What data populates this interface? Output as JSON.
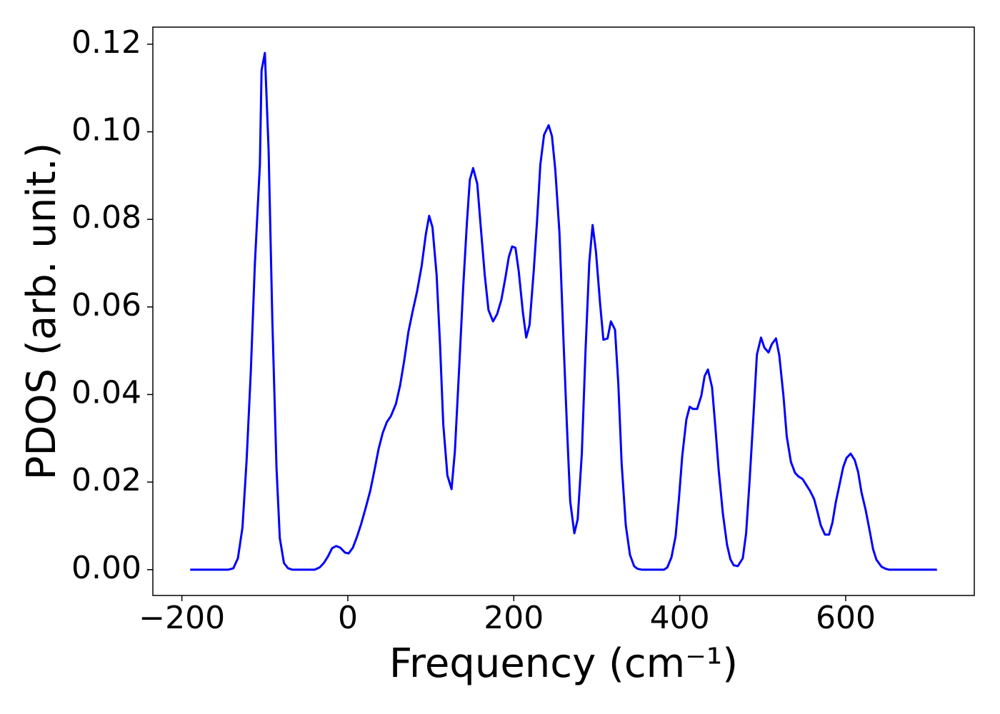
{
  "chart_data": {
    "type": "line",
    "xlabel": "Frequency (cm⁻¹)",
    "ylabel": "PDOS (arb. unit.)",
    "xlim": [
      -235,
      755
    ],
    "ylim": [
      -0.0059,
      0.1239
    ],
    "xticks": [
      {
        "value": -200,
        "label": "−200"
      },
      0,
      200,
      400,
      600
    ],
    "yticks": [
      {
        "value": 0,
        "label": "0.00"
      },
      {
        "value": 0.02,
        "label": "0.02"
      },
      {
        "value": 0.04,
        "label": "0.04"
      },
      {
        "value": 0.06,
        "label": "0.06"
      },
      {
        "value": 0.08,
        "label": "0.08"
      },
      {
        "value": 0.1,
        "label": "0.10"
      },
      {
        "value": 0.12,
        "label": "0.12"
      }
    ],
    "grid": false,
    "series": [
      {
        "color": "#0000ff",
        "x": [
          -190,
          -144,
          -138,
          -132.5,
          -127,
          -122,
          -117,
          -112,
          -106,
          -104,
          -100,
          -95.5,
          -91,
          -86,
          -82,
          -77,
          -72,
          -67,
          -40,
          -34,
          -29,
          -24,
          -19,
          -14,
          -9,
          -3.4,
          1,
          6,
          11,
          16,
          21.5,
          27,
          32,
          37,
          42,
          47,
          52,
          58,
          63,
          68,
          73,
          78,
          83.5,
          89,
          94,
          98,
          102,
          107,
          111,
          115,
          120,
          125,
          129,
          134,
          139,
          143.5,
          147,
          151,
          156,
          160,
          165,
          169.5,
          175,
          180,
          185,
          190,
          194,
          198,
          202,
          206,
          211,
          215,
          219,
          224,
          228,
          232,
          236.5,
          242,
          246,
          250,
          255,
          260,
          264,
          268,
          273,
          277,
          282,
          286.5,
          291,
          295,
          299,
          304,
          308,
          313,
          317,
          322,
          326,
          330,
          335,
          340,
          345,
          349,
          354,
          381,
          385,
          390,
          395,
          399,
          403,
          408,
          412,
          416,
          421,
          426,
          430,
          434,
          439,
          443,
          447,
          452,
          457,
          461,
          465,
          470,
          476,
          480,
          484,
          489,
          493,
          498,
          502,
          507,
          511,
          516,
          520,
          525,
          529,
          534,
          539,
          543,
          548,
          552,
          557,
          562,
          566,
          570,
          575,
          580,
          584,
          588,
          593,
          597,
          601,
          606,
          611,
          615,
          619,
          624,
          629,
          633,
          637,
          643,
          648,
          652,
          710
        ],
        "values": [
          0,
          0,
          0.0003,
          0.0026,
          0.0096,
          0.025,
          0.045,
          0.07,
          0.0925,
          0.114,
          0.118,
          0.0958,
          0.057,
          0.0234,
          0.0072,
          0.0015,
          0.0003,
          0,
          0,
          0.0005,
          0.0015,
          0.003,
          0.0049,
          0.0054,
          0.005,
          0.0039,
          0.0037,
          0.005,
          0.0075,
          0.0104,
          0.0141,
          0.018,
          0.0226,
          0.0275,
          0.0312,
          0.0337,
          0.0351,
          0.0379,
          0.0421,
          0.0478,
          0.0543,
          0.0589,
          0.0636,
          0.0694,
          0.0766,
          0.0808,
          0.0782,
          0.0673,
          0.0519,
          0.0332,
          0.0215,
          0.0184,
          0.027,
          0.0454,
          0.0644,
          0.0792,
          0.089,
          0.0917,
          0.0881,
          0.0787,
          0.0673,
          0.0593,
          0.0567,
          0.0584,
          0.0616,
          0.0668,
          0.0714,
          0.0738,
          0.0735,
          0.0681,
          0.0587,
          0.053,
          0.0559,
          0.0681,
          0.0795,
          0.0925,
          0.0993,
          0.1015,
          0.099,
          0.0914,
          0.0771,
          0.0519,
          0.033,
          0.0156,
          0.0083,
          0.0115,
          0.0265,
          0.0502,
          0.0702,
          0.0787,
          0.0727,
          0.0608,
          0.0525,
          0.0528,
          0.0567,
          0.0548,
          0.0424,
          0.0242,
          0.0101,
          0.0034,
          0.0008,
          0.0002,
          0,
          0,
          0.0005,
          0.0028,
          0.0076,
          0.0161,
          0.0259,
          0.0343,
          0.0372,
          0.0367,
          0.0367,
          0.0397,
          0.0442,
          0.0457,
          0.0416,
          0.0324,
          0.0226,
          0.0128,
          0.0057,
          0.0024,
          0.001,
          0.0008,
          0.0026,
          0.0083,
          0.0197,
          0.0356,
          0.0491,
          0.053,
          0.0507,
          0.0496,
          0.0515,
          0.0528,
          0.0489,
          0.0397,
          0.0304,
          0.0246,
          0.0221,
          0.0213,
          0.0207,
          0.0195,
          0.018,
          0.0161,
          0.0132,
          0.0101,
          0.008,
          0.008,
          0.0107,
          0.0153,
          0.0198,
          0.0234,
          0.0255,
          0.0265,
          0.025,
          0.0223,
          0.0177,
          0.0137,
          0.0088,
          0.0047,
          0.0023,
          0.0007,
          0.0002,
          0,
          0
        ]
      }
    ]
  }
}
